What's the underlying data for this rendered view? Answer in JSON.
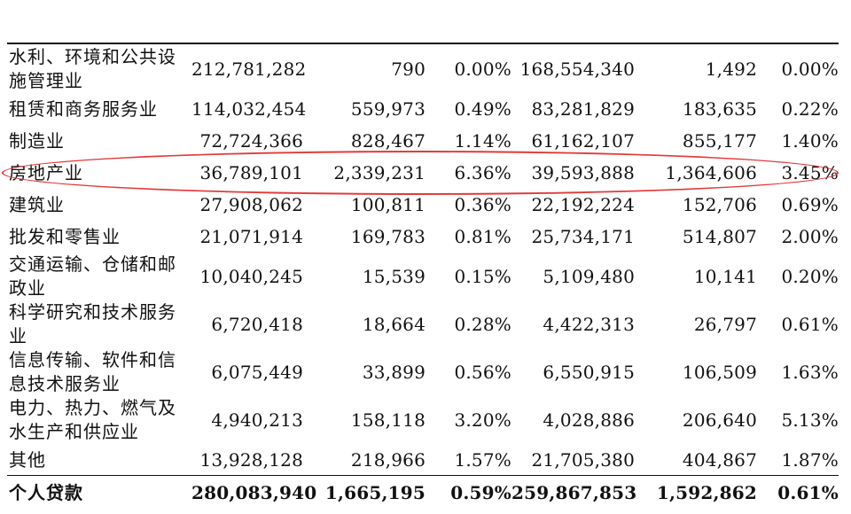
{
  "rows": [
    {
      "industry": "水利、环境和公共设施管理业",
      "v1": "212,781,282",
      "v2": "790",
      "v3": "0.00%",
      "v4": "168,554,340",
      "v5": "1,492",
      "v6": "0.00%",
      "height": 2
    },
    {
      "industry": "租赁和商务服务业",
      "v1": "114,032,454",
      "v2": "559,973",
      "v3": "0.49%",
      "v4": "83,281,829",
      "v5": "183,635",
      "v6": "0.22%",
      "height": 1
    },
    {
      "industry": "制造业",
      "v1": "72,724,366",
      "v2": "828,467",
      "v3": "1.14%",
      "v4": "61,162,107",
      "v5": "855,177",
      "v6": "1.40%",
      "height": 1
    },
    {
      "industry": "房地产业",
      "v1": "36,789,101",
      "v2": "2,339,231",
      "v3": "6.36%",
      "v4": "39,593,888",
      "v5": "1,364,606",
      "v6": "3.45%",
      "height": 1
    },
    {
      "industry": "建筑业",
      "v1": "27,908,062",
      "v2": "100,811",
      "v3": "0.36%",
      "v4": "22,192,224",
      "v5": "152,706",
      "v6": "0.69%",
      "height": 1
    },
    {
      "industry": "批发和零售业",
      "v1": "21,071,914",
      "v2": "169,783",
      "v3": "0.81%",
      "v4": "25,734,171",
      "v5": "514,807",
      "v6": "2.00%",
      "height": 1
    },
    {
      "industry": "交通运输、仓储和邮政业",
      "v1": "10,040,245",
      "v2": "15,539",
      "v3": "0.15%",
      "v4": "5,109,480",
      "v5": "10,141",
      "v6": "0.20%",
      "height": 2
    },
    {
      "industry": "科学研究和技术服务业",
      "v1": "6,720,418",
      "v2": "18,664",
      "v3": "0.28%",
      "v4": "4,422,313",
      "v5": "26,797",
      "v6": "0.61%",
      "height": 2
    },
    {
      "industry": "信息传输、软件和信息技术服务业",
      "v1": "6,075,449",
      "v2": "33,899",
      "v3": "0.56%",
      "v4": "6,550,915",
      "v5": "106,509",
      "v6": "1.63%",
      "height": 2
    },
    {
      "industry": "电力、热力、燃气及水生产和供应业",
      "v1": "4,940,213",
      "v2": "158,118",
      "v3": "3.20%",
      "v4": "4,028,886",
      "v5": "206,640",
      "v6": "5.13%",
      "height": 2
    },
    {
      "industry": "其他",
      "v1": "13,928,128",
      "v2": "218,966",
      "v3": "1.57%",
      "v4": "21,705,380",
      "v5": "404,867",
      "v6": "1.87%",
      "height": 1
    }
  ],
  "total": {
    "industry": "个人贷款",
    "v1": "280,083,940",
    "v2": "1,665,195",
    "v3": "0.59%",
    "v4": "259,867,853",
    "v5": "1,592,862",
    "v6": "0.61%"
  },
  "highlighted_row": "房地产业",
  "colors": {
    "highlight": "#e23a3a",
    "text": "#111111",
    "background": "#ffffff"
  }
}
